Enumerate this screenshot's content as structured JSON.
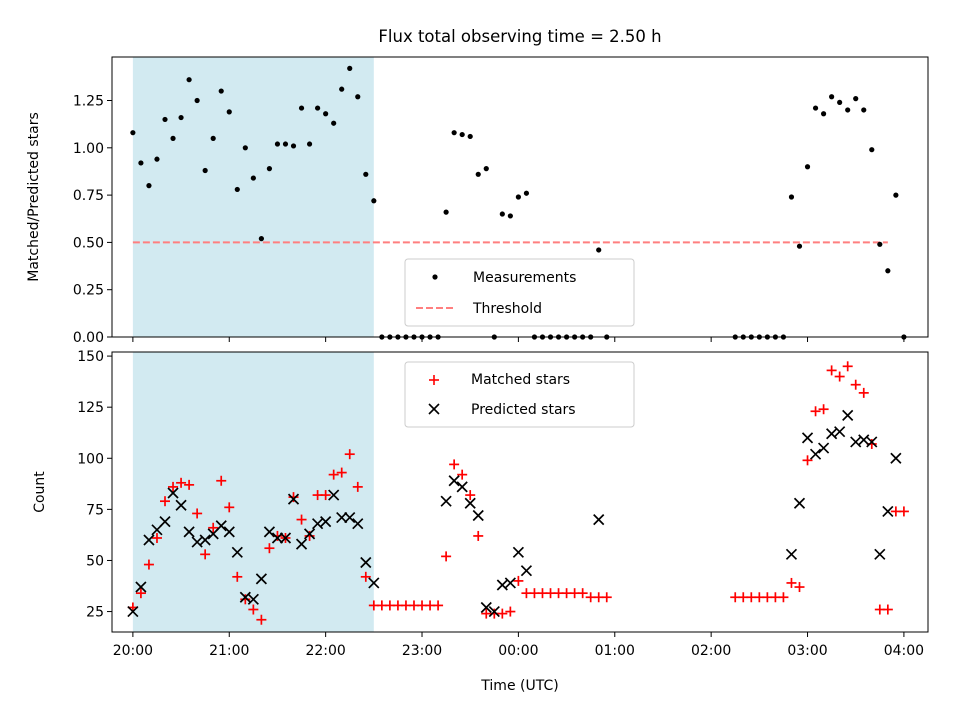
{
  "chart_data": [
    {
      "type": "scatter",
      "title": "Flux total observing time = 2.50 h",
      "xlabel": "",
      "ylabel": "Matched/Predicted stars",
      "xlim": [
        "19:47",
        "04:15"
      ],
      "ylim": [
        0,
        1.48
      ],
      "y_ticks": [
        "0.00",
        "0.25",
        "0.50",
        "0.75",
        "1.00",
        "1.25"
      ],
      "x_ticks_hidden": true,
      "shaded_region": {
        "x_start": "20:00",
        "x_end": "22:30",
        "color": "#add8e6"
      },
      "legend_position": "bottom-center",
      "threshold": {
        "name": "Threshold",
        "y": 0.5,
        "x_start": "20:00",
        "x_end": "03:50",
        "color": "#ff7f7f",
        "style": "dashed"
      },
      "series": [
        {
          "name": "Measurements",
          "marker": "dot",
          "color": "#000000",
          "points": [
            [
              "20:00",
              1.08
            ],
            [
              "20:05",
              0.92
            ],
            [
              "20:10",
              0.8
            ],
            [
              "20:15",
              0.94
            ],
            [
              "20:20",
              1.15
            ],
            [
              "20:25",
              1.05
            ],
            [
              "20:30",
              1.16
            ],
            [
              "20:35",
              1.36
            ],
            [
              "20:40",
              1.25
            ],
            [
              "20:45",
              0.88
            ],
            [
              "20:50",
              1.05
            ],
            [
              "20:55",
              1.3
            ],
            [
              "21:00",
              1.19
            ],
            [
              "21:05",
              0.78
            ],
            [
              "21:10",
              1.0
            ],
            [
              "21:15",
              0.84
            ],
            [
              "21:20",
              0.52
            ],
            [
              "21:25",
              0.89
            ],
            [
              "21:30",
              1.02
            ],
            [
              "21:35",
              1.02
            ],
            [
              "21:40",
              1.01
            ],
            [
              "21:45",
              1.21
            ],
            [
              "21:50",
              1.02
            ],
            [
              "21:55",
              1.21
            ],
            [
              "22:00",
              1.18
            ],
            [
              "22:05",
              1.13
            ],
            [
              "22:10",
              1.31
            ],
            [
              "22:15",
              1.42
            ],
            [
              "22:20",
              1.27
            ],
            [
              "22:25",
              0.86
            ],
            [
              "22:30",
              0.72
            ],
            [
              "22:35",
              0
            ],
            [
              "22:40",
              0
            ],
            [
              "22:45",
              0
            ],
            [
              "22:50",
              0
            ],
            [
              "22:55",
              0
            ],
            [
              "23:00",
              0
            ],
            [
              "23:05",
              0
            ],
            [
              "23:10",
              0
            ],
            [
              "23:15",
              0.66
            ],
            [
              "23:20",
              1.08
            ],
            [
              "23:25",
              1.07
            ],
            [
              "23:30",
              1.06
            ],
            [
              "23:35",
              0.86
            ],
            [
              "23:40",
              0.89
            ],
            [
              "23:45",
              0
            ],
            [
              "23:50",
              0.65
            ],
            [
              "23:55",
              0.64
            ],
            [
              "00:00",
              0.74
            ],
            [
              "00:05",
              0.76
            ],
            [
              "00:10",
              0
            ],
            [
              "00:15",
              0
            ],
            [
              "00:20",
              0
            ],
            [
              "00:25",
              0
            ],
            [
              "00:30",
              0
            ],
            [
              "00:35",
              0
            ],
            [
              "00:40",
              0
            ],
            [
              "00:45",
              0
            ],
            [
              "00:50",
              0.46
            ],
            [
              "00:55",
              0
            ],
            [
              "02:15",
              0
            ],
            [
              "02:20",
              0
            ],
            [
              "02:25",
              0
            ],
            [
              "02:30",
              0
            ],
            [
              "02:35",
              0
            ],
            [
              "02:40",
              0
            ],
            [
              "02:45",
              0
            ],
            [
              "02:50",
              0.74
            ],
            [
              "02:55",
              0.48
            ],
            [
              "03:00",
              0.9
            ],
            [
              "03:05",
              1.21
            ],
            [
              "03:10",
              1.18
            ],
            [
              "03:15",
              1.27
            ],
            [
              "03:20",
              1.24
            ],
            [
              "03:25",
              1.2
            ],
            [
              "03:30",
              1.26
            ],
            [
              "03:35",
              1.2
            ],
            [
              "03:40",
              0.99
            ],
            [
              "03:45",
              0.49
            ],
            [
              "03:50",
              0.35
            ],
            [
              "03:55",
              0.75
            ],
            [
              "04:00",
              0
            ]
          ]
        }
      ]
    },
    {
      "type": "scatter",
      "title": "",
      "xlabel": "Time (UTC)",
      "ylabel": "Count",
      "xlim": [
        "19:47",
        "04:15"
      ],
      "ylim": [
        15,
        152
      ],
      "y_ticks": [
        "25",
        "50",
        "75",
        "100",
        "125",
        "150"
      ],
      "x_ticks": [
        "20:00",
        "21:00",
        "22:00",
        "23:00",
        "00:00",
        "01:00",
        "02:00",
        "03:00",
        "04:00"
      ],
      "shaded_region": {
        "x_start": "20:00",
        "x_end": "22:30",
        "color": "#add8e6"
      },
      "legend_position": "top-center",
      "series": [
        {
          "name": "Matched stars",
          "marker": "plus",
          "color": "#ff0000",
          "points": [
            [
              "20:00",
              27
            ],
            [
              "20:05",
              34
            ],
            [
              "20:10",
              48
            ],
            [
              "20:15",
              61
            ],
            [
              "20:20",
              79
            ],
            [
              "20:25",
              86
            ],
            [
              "20:30",
              88
            ],
            [
              "20:35",
              87
            ],
            [
              "20:40",
              73
            ],
            [
              "20:45",
              53
            ],
            [
              "20:50",
              66
            ],
            [
              "20:55",
              89
            ],
            [
              "21:00",
              76
            ],
            [
              "21:05",
              42
            ],
            [
              "21:10",
              31
            ],
            [
              "21:15",
              26
            ],
            [
              "21:20",
              21
            ],
            [
              "21:25",
              56
            ],
            [
              "21:30",
              62
            ],
            [
              "21:35",
              61
            ],
            [
              "21:40",
              81
            ],
            [
              "21:45",
              70
            ],
            [
              "21:50",
              62
            ],
            [
              "21:55",
              82
            ],
            [
              "22:00",
              82
            ],
            [
              "22:05",
              92
            ],
            [
              "22:10",
              93
            ],
            [
              "22:15",
              102
            ],
            [
              "22:20",
              86
            ],
            [
              "22:25",
              42
            ],
            [
              "22:30",
              28
            ],
            [
              "22:35",
              28
            ],
            [
              "22:40",
              28
            ],
            [
              "22:45",
              28
            ],
            [
              "22:50",
              28
            ],
            [
              "22:55",
              28
            ],
            [
              "23:00",
              28
            ],
            [
              "23:05",
              28
            ],
            [
              "23:10",
              28
            ],
            [
              "23:15",
              52
            ],
            [
              "23:20",
              97
            ],
            [
              "23:25",
              92
            ],
            [
              "23:30",
              82
            ],
            [
              "23:35",
              62
            ],
            [
              "23:40",
              24
            ],
            [
              "23:45",
              24
            ],
            [
              "23:50",
              24
            ],
            [
              "23:55",
              25
            ],
            [
              "00:00",
              40
            ],
            [
              "00:05",
              34
            ],
            [
              "00:10",
              34
            ],
            [
              "00:15",
              34
            ],
            [
              "00:20",
              34
            ],
            [
              "00:25",
              34
            ],
            [
              "00:30",
              34
            ],
            [
              "00:35",
              34
            ],
            [
              "00:40",
              34
            ],
            [
              "00:45",
              32
            ],
            [
              "00:50",
              32
            ],
            [
              "00:55",
              32
            ],
            [
              "02:15",
              32
            ],
            [
              "02:20",
              32
            ],
            [
              "02:25",
              32
            ],
            [
              "02:30",
              32
            ],
            [
              "02:35",
              32
            ],
            [
              "02:40",
              32
            ],
            [
              "02:45",
              32
            ],
            [
              "02:50",
              39
            ],
            [
              "02:55",
              37
            ],
            [
              "03:00",
              99
            ],
            [
              "03:05",
              123
            ],
            [
              "03:10",
              124
            ],
            [
              "03:15",
              143
            ],
            [
              "03:20",
              140
            ],
            [
              "03:25",
              145
            ],
            [
              "03:30",
              136
            ],
            [
              "03:35",
              132
            ],
            [
              "03:40",
              107
            ],
            [
              "03:45",
              26
            ],
            [
              "03:50",
              26
            ],
            [
              "03:55",
              74
            ],
            [
              "04:00",
              74
            ]
          ]
        },
        {
          "name": "Predicted stars",
          "marker": "x",
          "color": "#000000",
          "points": [
            [
              "20:00",
              25
            ],
            [
              "20:05",
              37
            ],
            [
              "20:10",
              60
            ],
            [
              "20:15",
              65
            ],
            [
              "20:20",
              69
            ],
            [
              "20:25",
              83
            ],
            [
              "20:30",
              77
            ],
            [
              "20:35",
              64
            ],
            [
              "20:40",
              59
            ],
            [
              "20:45",
              60
            ],
            [
              "20:50",
              63
            ],
            [
              "20:55",
              67
            ],
            [
              "21:00",
              64
            ],
            [
              "21:05",
              54
            ],
            [
              "21:10",
              32
            ],
            [
              "21:15",
              31
            ],
            [
              "21:20",
              41
            ],
            [
              "21:25",
              64
            ],
            [
              "21:30",
              61
            ],
            [
              "21:35",
              61
            ],
            [
              "21:40",
              80
            ],
            [
              "21:45",
              58
            ],
            [
              "21:50",
              63
            ],
            [
              "21:55",
              68
            ],
            [
              "22:00",
              69
            ],
            [
              "22:05",
              82
            ],
            [
              "22:10",
              71
            ],
            [
              "22:15",
              71
            ],
            [
              "22:20",
              68
            ],
            [
              "22:25",
              49
            ],
            [
              "22:30",
              39
            ],
            [
              "23:15",
              79
            ],
            [
              "23:20",
              89
            ],
            [
              "23:25",
              86
            ],
            [
              "23:30",
              78
            ],
            [
              "23:35",
              72
            ],
            [
              "23:40",
              27
            ],
            [
              "23:45",
              25
            ],
            [
              "23:50",
              38
            ],
            [
              "23:55",
              39
            ],
            [
              "00:00",
              54
            ],
            [
              "00:05",
              45
            ],
            [
              "00:50",
              70
            ],
            [
              "02:50",
              53
            ],
            [
              "02:55",
              78
            ],
            [
              "03:00",
              110
            ],
            [
              "03:05",
              102
            ],
            [
              "03:10",
              105
            ],
            [
              "03:15",
              112
            ],
            [
              "03:20",
              113
            ],
            [
              "03:25",
              121
            ],
            [
              "03:30",
              108
            ],
            [
              "03:35",
              109
            ],
            [
              "03:40",
              108
            ],
            [
              "03:45",
              53
            ],
            [
              "03:50",
              74
            ],
            [
              "03:55",
              100
            ]
          ]
        }
      ]
    }
  ]
}
